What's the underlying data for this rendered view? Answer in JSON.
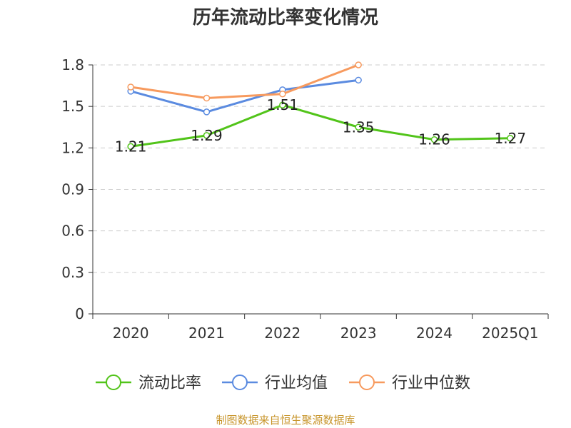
{
  "chart_data": {
    "type": "line",
    "title": "历年流动比率变化情况",
    "categories": [
      "2020",
      "2021",
      "2022",
      "2023",
      "2024",
      "2025Q1"
    ],
    "y_ticks": [
      "0",
      "0.3",
      "0.6",
      "0.9",
      "1.2",
      "1.5",
      "1.8"
    ],
    "ylim": [
      0,
      1.8
    ],
    "grid": "horizontal-dashed",
    "legend_position": "bottom",
    "series": [
      {
        "name": "流动比率",
        "color": "#52c41a",
        "values": [
          1.21,
          1.29,
          1.51,
          1.35,
          1.26,
          1.27
        ],
        "labels": [
          "1.21",
          "1.29",
          "1.51",
          "1.35",
          "1.26",
          "1.27"
        ]
      },
      {
        "name": "行业均值",
        "color": "#5b8be0",
        "values": [
          1.61,
          1.46,
          1.62,
          1.69,
          null,
          null
        ]
      },
      {
        "name": "行业中位数",
        "color": "#f79a5e",
        "values": [
          1.64,
          1.56,
          1.59,
          1.8,
          null,
          null
        ]
      }
    ]
  },
  "footer": {
    "source": "制图数据来自恒生聚源数据库"
  }
}
